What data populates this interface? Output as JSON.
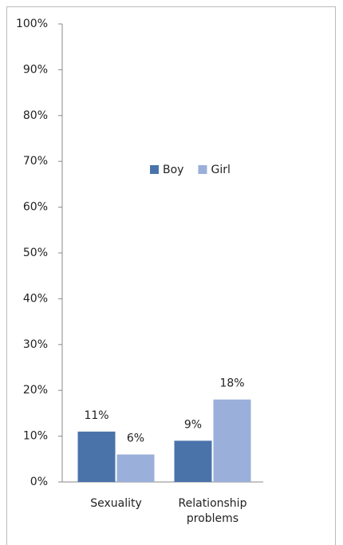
{
  "chart_data": {
    "type": "bar",
    "categories": [
      "Sexuality",
      "Relationship problems"
    ],
    "series": [
      {
        "name": "Boy",
        "color": "#4a73aa",
        "values": [
          11,
          9
        ],
        "value_labels": [
          "11%",
          "9%"
        ]
      },
      {
        "name": "Girl",
        "color": "#9aafd9",
        "values": [
          6,
          18
        ],
        "value_labels": [
          "6%",
          "18%"
        ]
      }
    ],
    "ylim": [
      0,
      100
    ],
    "yticks": [
      {
        "value": 0,
        "label": "0%"
      },
      {
        "value": 10,
        "label": "10%"
      },
      {
        "value": 20,
        "label": "20%"
      },
      {
        "value": 30,
        "label": "30%"
      },
      {
        "value": 40,
        "label": "40%"
      },
      {
        "value": 50,
        "label": "50%"
      },
      {
        "value": 60,
        "label": "60%"
      },
      {
        "value": 70,
        "label": "70%"
      },
      {
        "value": 80,
        "label": "80%"
      },
      {
        "value": 90,
        "label": "90%"
      },
      {
        "value": 100,
        "label": "100%"
      }
    ],
    "grid": false,
    "legend": "center"
  }
}
